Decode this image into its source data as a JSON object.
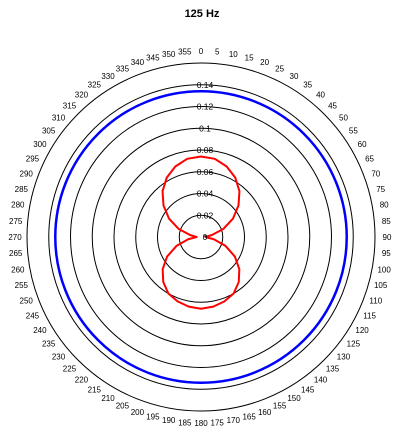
{
  "chart_data": {
    "type": "polar",
    "title": "125 Hz",
    "angle_ticks": [
      0,
      5,
      10,
      15,
      20,
      25,
      30,
      35,
      40,
      45,
      50,
      55,
      60,
      65,
      70,
      75,
      80,
      85,
      90,
      95,
      100,
      105,
      110,
      115,
      120,
      125,
      130,
      135,
      140,
      145,
      150,
      155,
      160,
      165,
      170,
      175,
      180,
      185,
      190,
      195,
      200,
      205,
      210,
      215,
      220,
      225,
      230,
      235,
      240,
      245,
      250,
      255,
      260,
      265,
      270,
      275,
      280,
      285,
      290,
      295,
      300,
      305,
      310,
      315,
      320,
      325,
      330,
      335,
      340,
      345,
      350,
      355
    ],
    "angle_tick_labels": [
      "0",
      "5",
      "10",
      "15",
      "20",
      "25",
      "30",
      "35",
      "40",
      "45",
      "50",
      "55",
      "60",
      "65",
      "70",
      "75",
      "80",
      "85",
      "90",
      "95",
      "100",
      "105",
      "110",
      "115",
      "120",
      "125",
      "130",
      "135",
      "140",
      "145",
      "150",
      "155",
      "160",
      "165",
      "170",
      "175",
      "180",
      "185",
      "190",
      "195",
      "200",
      "205",
      "210",
      "215",
      "220",
      "225",
      "230",
      "235",
      "240",
      "245",
      "250",
      "255",
      "260",
      "265",
      "270",
      "275",
      "280",
      "285",
      "290",
      "295",
      "300",
      "305",
      "310",
      "315",
      "320",
      "325",
      "330",
      "335",
      "340",
      "345",
      "350",
      "355"
    ],
    "radial_ticks": [
      0,
      0.02,
      0.04,
      0.06,
      0.08,
      0.1,
      0.12,
      0.14
    ],
    "radial_tick_labels": [
      "0",
      "0.02",
      "0.04",
      "0.06",
      "0.08",
      "0.1",
      "0.12",
      "0.14"
    ],
    "rlim": [
      0,
      0.16
    ],
    "angle_direction": "clockwise",
    "zero_location": "top",
    "series": [
      {
        "color": "#0000ff",
        "theta_deg": [
          0,
          90,
          180,
          270
        ],
        "r": [
          0.134,
          0.134,
          0.134,
          0.134
        ]
      },
      {
        "color": "#ff0000",
        "theta_deg": [
          0,
          10,
          20,
          30,
          40,
          50,
          60,
          70,
          80,
          90,
          100,
          110,
          120,
          130,
          140,
          150,
          160,
          170,
          180,
          190,
          200,
          210,
          220,
          230,
          240,
          250,
          260,
          270,
          280,
          290,
          300,
          310,
          320,
          330,
          340,
          350
        ],
        "r": [
          0.074,
          0.073,
          0.069,
          0.063,
          0.055,
          0.045,
          0.034,
          0.022,
          0.01,
          0.004,
          0.012,
          0.024,
          0.036,
          0.046,
          0.054,
          0.06,
          0.063,
          0.065,
          0.066,
          0.065,
          0.063,
          0.06,
          0.054,
          0.046,
          0.036,
          0.024,
          0.012,
          0.004,
          0.01,
          0.022,
          0.034,
          0.045,
          0.055,
          0.063,
          0.069,
          0.073
        ]
      }
    ]
  }
}
